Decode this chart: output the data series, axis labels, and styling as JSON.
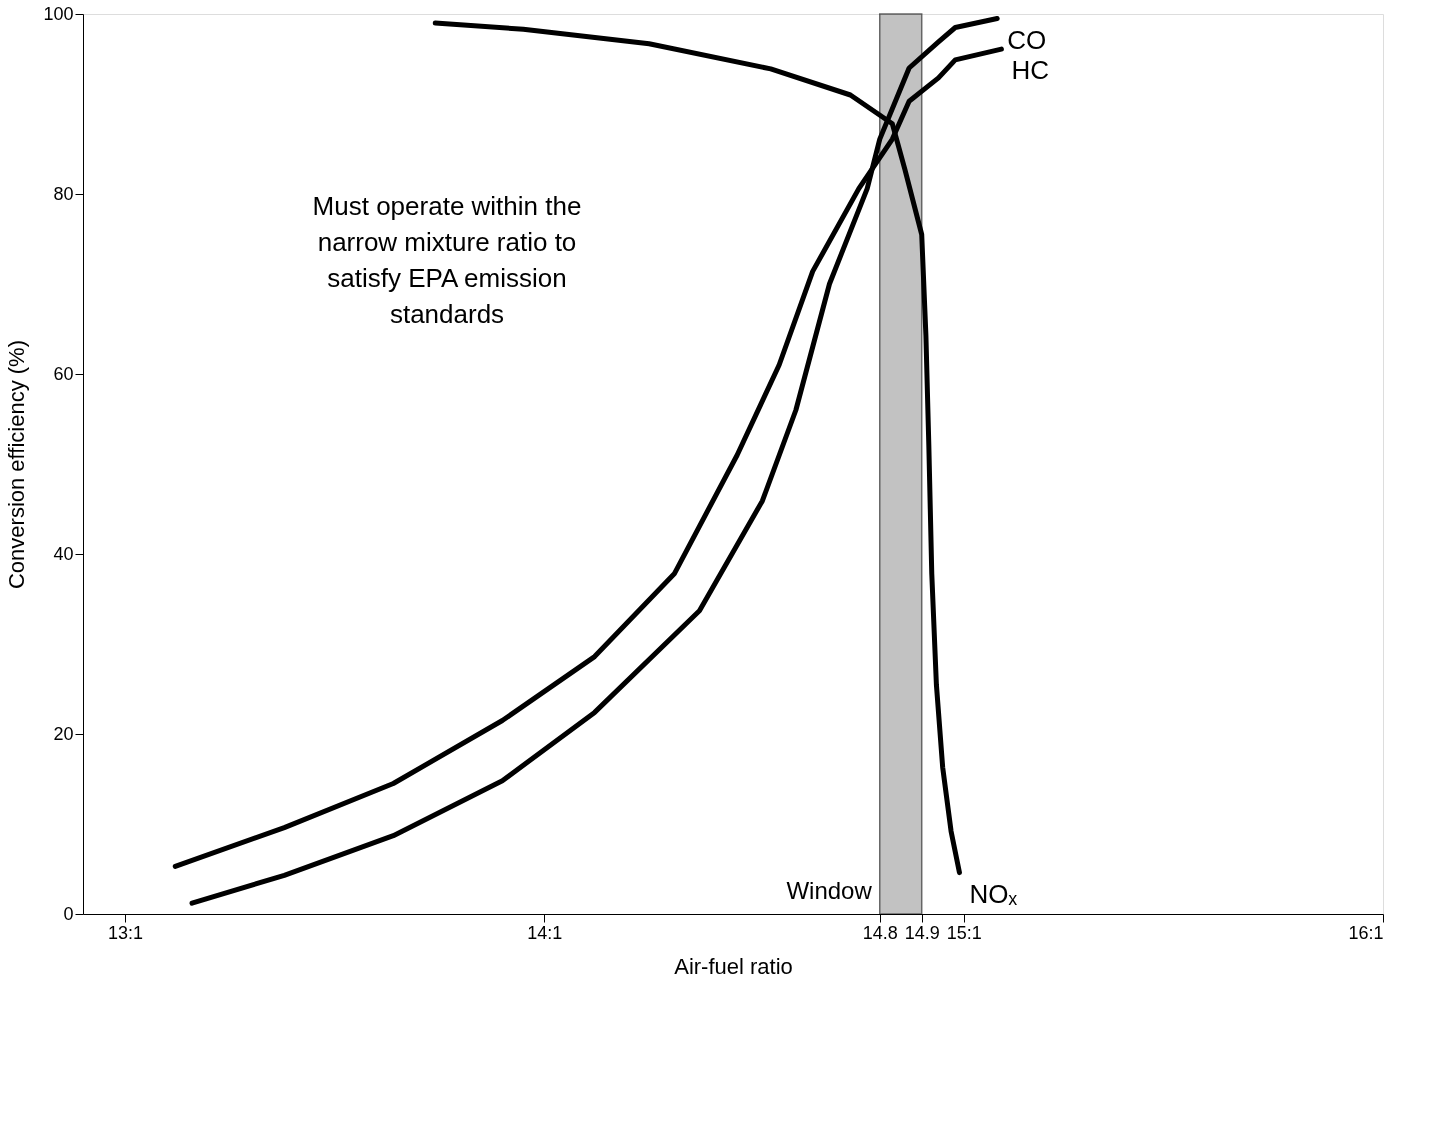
{
  "chart_data": {
    "type": "line",
    "xlabel": "Air-fuel ratio",
    "ylabel": "Conversion efficiency (%)",
    "xlim": [
      12.9,
      16.0
    ],
    "ylim": [
      0,
      100
    ],
    "xticks": [
      {
        "value": 13,
        "label": "13:1"
      },
      {
        "value": 14,
        "label": "14:1"
      },
      {
        "value": 14.8,
        "label": "14.8"
      },
      {
        "value": 14.9,
        "label": "14.9"
      },
      {
        "value": 15,
        "label": "15:1"
      },
      {
        "value": 16,
        "label": "16:1"
      }
    ],
    "yticks": [
      0,
      20,
      40,
      60,
      80,
      100
    ],
    "grid": false,
    "marker": "none",
    "line_style": "solid",
    "series": [
      {
        "name": "NOₓ",
        "color": "#000000",
        "x": [
          13.74,
          13.95,
          14.25,
          14.54,
          14.73,
          14.83,
          14.86,
          14.9,
          14.91,
          14.917,
          14.924,
          14.935,
          14.95,
          14.97,
          14.99
        ],
        "values": [
          99,
          98.3,
          96.7,
          93.9,
          91,
          87.8,
          82.7,
          75.5,
          64.3,
          52,
          37.8,
          25.5,
          16.3,
          9.2,
          4.6
        ]
      },
      {
        "name": "HC",
        "color": "#000000",
        "x": [
          13.12,
          13.38,
          13.64,
          13.9,
          14.12,
          14.31,
          14.46,
          14.56,
          14.64,
          14.75,
          14.83,
          14.87,
          14.94,
          14.98,
          15.09
        ],
        "values": [
          5.3,
          9.6,
          14.5,
          21.5,
          28.6,
          37.8,
          51,
          61,
          71.4,
          80.6,
          86.1,
          90.3,
          92.9,
          94.9,
          96.1
        ]
      },
      {
        "name": "CO",
        "color": "#000000",
        "x": [
          13.16,
          13.38,
          13.64,
          13.9,
          14.12,
          14.37,
          14.52,
          14.6,
          14.68,
          14.77,
          14.8,
          14.87,
          14.94,
          14.98,
          15.08
        ],
        "values": [
          1.2,
          4.3,
          8.7,
          14.8,
          22.4,
          33.7,
          45.9,
          56,
          70,
          80.6,
          86.1,
          94,
          96.9,
          98.5,
          99.5
        ]
      }
    ],
    "bands": [
      {
        "axis": "x",
        "from": 14.8,
        "to": 14.9,
        "label": "Window",
        "color": "#9a9a9a"
      }
    ],
    "annotations": [
      "Must operate within the narrow mixture ratio to satisfy EPA emission standards"
    ]
  }
}
